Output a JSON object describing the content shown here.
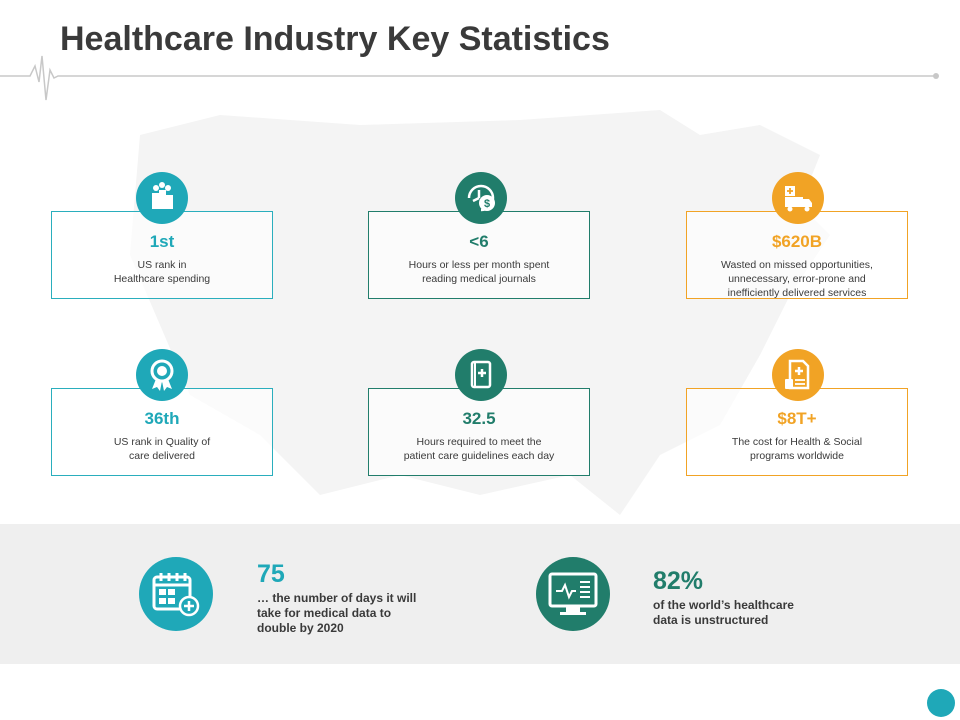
{
  "header": {
    "title": "Healthcare Industry Key Statistics"
  },
  "colors": {
    "teal": "#1fa8b8",
    "green": "#217d6b",
    "orange": "#f1a325",
    "band": "#efefef"
  },
  "cards": [
    {
      "value": "1st",
      "desc": "US rank in\nHealthcare spending",
      "icon": "ranking-podium-icon",
      "color": "teal"
    },
    {
      "value": "<6",
      "desc": "Hours or less per month spent\nreading medical journals",
      "icon": "clock-dollar-icon",
      "color": "green"
    },
    {
      "value": "$620B",
      "desc": "Wasted on missed opportunities,\nunnecessary, error-prone and\ninefficiently delivered services",
      "icon": "medical-truck-icon",
      "color": "orange"
    },
    {
      "value": "36th",
      "desc": "US rank in Quality of\ncare delivered",
      "icon": "award-ribbon-icon",
      "color": "teal"
    },
    {
      "value": "32.5",
      "desc": "Hours required to meet the\npatient care guidelines each day",
      "icon": "medical-notebook-icon",
      "color": "green"
    },
    {
      "value": "$8T+",
      "desc": "The cost for Health & Social\nprograms worldwide",
      "icon": "medical-document-icon",
      "color": "orange"
    }
  ],
  "bottom_stats": [
    {
      "value": "75",
      "desc": "… the number of days it will\ntake for medical data to\ndouble by 2020",
      "icon": "calendar-plus-icon",
      "color": "teal"
    },
    {
      "value": "82%",
      "desc": "of the world’s healthcare\ndata is unstructured",
      "icon": "monitor-heartbeat-icon",
      "color": "green"
    }
  ]
}
